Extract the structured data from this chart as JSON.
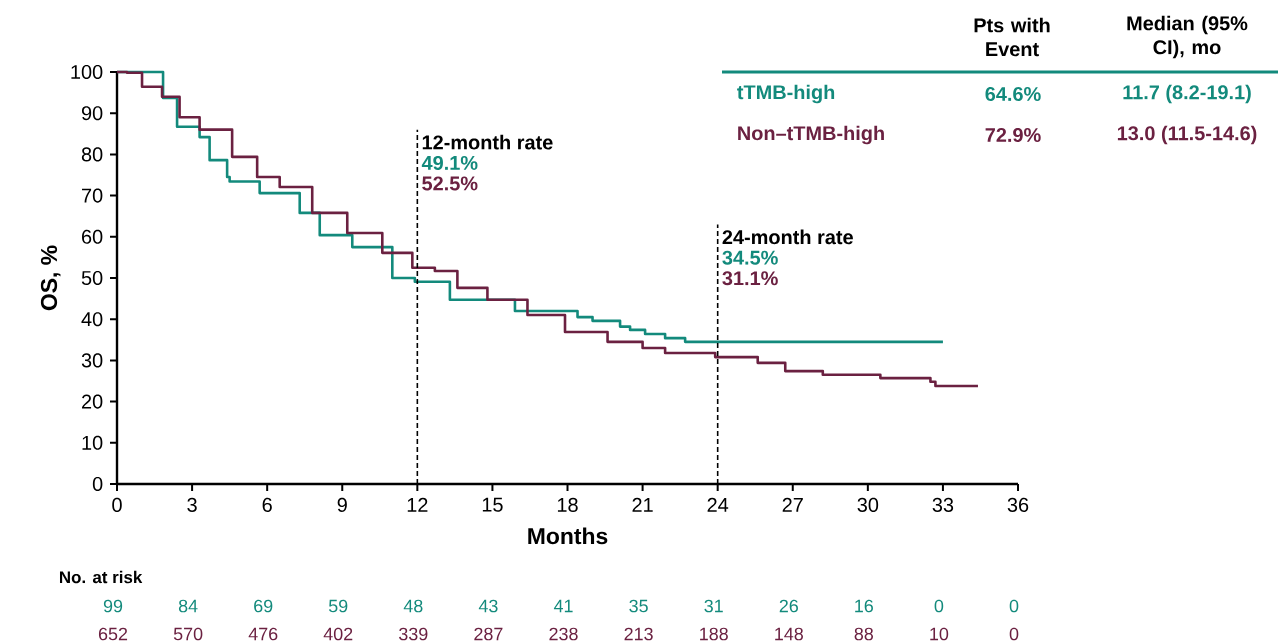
{
  "chart_data": {
    "type": "step",
    "xlabel": "Months",
    "ylabel": "OS, %",
    "xlim": [
      0,
      36
    ],
    "ylim": [
      0,
      100
    ],
    "xticks": [
      0,
      3,
      6,
      9,
      12,
      15,
      18,
      21,
      24,
      27,
      30,
      33,
      36
    ],
    "yticks": [
      0,
      10,
      20,
      30,
      40,
      50,
      60,
      70,
      80,
      90,
      100
    ],
    "grid": false,
    "marker": "none",
    "line_style": "solid",
    "series": [
      {
        "name": "tTMB-high",
        "color": "#138a7c",
        "x": [
          0,
          1.44,
          1.84,
          2.4,
          3.3,
          3.7,
          4.4,
          4.5,
          5.5,
          5.7,
          6.6,
          7.3,
          8.1,
          9.0,
          9.4,
          10.4,
          11.0,
          11.9,
          13.3,
          15.9,
          18.4,
          19.0,
          20.1,
          20.5,
          21.1,
          21.9,
          22.7,
          33.0
        ],
        "values": [
          100,
          100,
          93.7,
          86.7,
          84.2,
          78.6,
          74.5,
          73.4,
          73.4,
          70.6,
          70.6,
          65.8,
          60.4,
          60.4,
          57.5,
          57.5,
          50,
          49.1,
          44.7,
          42,
          40.5,
          39.6,
          38.2,
          37.4,
          36.4,
          35.4,
          34.5,
          34.5
        ]
      },
      {
        "name": "Non–tTMB-high",
        "color": "#6b2141",
        "x": [
          0,
          0.4,
          1.0,
          1.8,
          2.5,
          3.3,
          4.6,
          5.6,
          6.5,
          7.8,
          9.2,
          10.6,
          11.8,
          12.7,
          13.6,
          14.8,
          16.4,
          17.9,
          19.6,
          21.0,
          21.9,
          23.9,
          25.6,
          26.7,
          28.2,
          30.5,
          32.5,
          32.7,
          34.4
        ],
        "values": [
          100,
          99.8,
          96.4,
          94,
          89,
          86,
          79.4,
          74.5,
          72.1,
          65.8,
          60.9,
          56.1,
          52.5,
          51.7,
          47.6,
          44.7,
          41,
          36.9,
          34.5,
          33,
          31.8,
          30.8,
          29.4,
          27.4,
          26.5,
          25.7,
          24.8,
          23.8,
          23.8
        ]
      }
    ],
    "ref_lines": [
      {
        "axis": "x",
        "value": 12,
        "label": "12-month rate",
        "color": "#000000",
        "line_style": "dashed"
      },
      {
        "axis": "x",
        "value": 24,
        "label": "24-month rate",
        "color": "#000000",
        "line_style": "dashed"
      }
    ],
    "annotations": [
      "Pts with Event",
      "Median (95% CI), mo",
      "64.6%",
      "11.7 (8.2-19.1)",
      "72.9%",
      "13.0 (11.5-14.6)",
      "49.1%",
      "52.5%",
      "34.5%",
      "31.1%",
      "No. at risk",
      "99",
      "84",
      "69",
      "59",
      "48",
      "43",
      "41",
      "35",
      "31",
      "26",
      "16",
      "0",
      "0",
      "652",
      "570",
      "476",
      "402",
      "339",
      "287",
      "238",
      "213",
      "188",
      "148",
      "88",
      "10",
      "0"
    ]
  }
}
